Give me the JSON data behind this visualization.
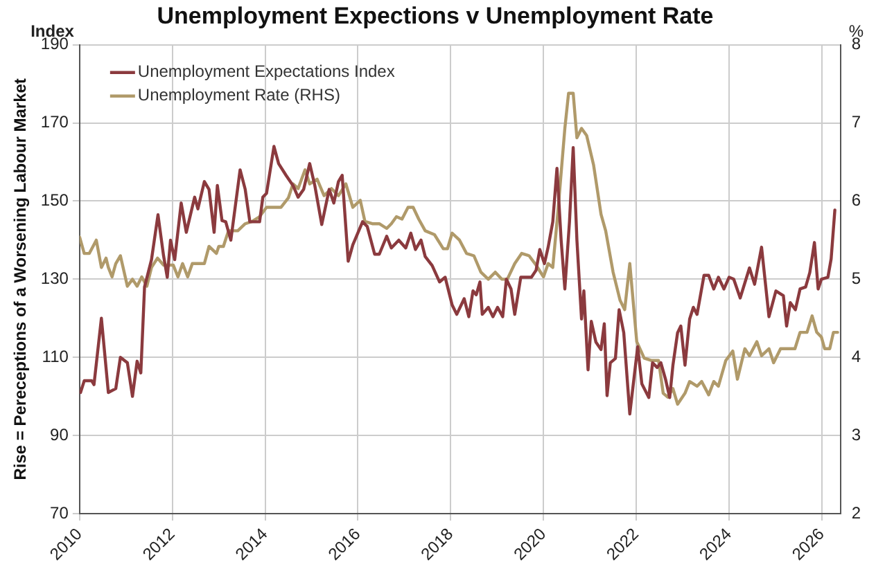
{
  "chart_data": {
    "type": "line",
    "title": "Unemployment Expections v Unemployment Rate",
    "ylabel": "Rise = Pereceptions of a Worsening Labour Market",
    "y2label": "%",
    "annotations": [
      "Index"
    ],
    "xlim": [
      2010,
      2026.4
    ],
    "xticks": [
      2010,
      2012,
      2014,
      2016,
      2018,
      2020,
      2022,
      2024,
      2026
    ],
    "ylim": [
      70,
      190
    ],
    "yticks": [
      70,
      90,
      110,
      130,
      150,
      170,
      190
    ],
    "y2lim": [
      2,
      8
    ],
    "y2ticks": [
      2,
      3,
      4,
      5,
      6,
      7,
      8
    ],
    "grid": true,
    "legend": "top left",
    "marker": "none",
    "line_style": "solid",
    "series": [
      {
        "name": "Unemployment Expectations Index",
        "color": "#8b3a3e",
        "x": [
          2010.02,
          2010.1,
          2010.26,
          2010.31,
          2010.47,
          2010.62,
          2010.78,
          2010.88,
          2011.03,
          2011.14,
          2011.24,
          2011.32,
          2011.4,
          2011.55,
          2011.69,
          2011.81,
          2011.89,
          2011.96,
          2012.05,
          2012.19,
          2012.3,
          2012.48,
          2012.55,
          2012.69,
          2012.79,
          2012.9,
          2012.97,
          2013.07,
          2013.15,
          2013.26,
          2013.46,
          2013.57,
          2013.67,
          2013.88,
          2013.95,
          2014.03,
          2014.19,
          2014.29,
          2014.45,
          2014.6,
          2014.71,
          2014.83,
          2014.96,
          2015.07,
          2015.22,
          2015.38,
          2015.48,
          2015.58,
          2015.66,
          2015.79,
          2015.89,
          2016.1,
          2016.2,
          2016.36,
          2016.46,
          2016.62,
          2016.72,
          2016.88,
          2017.03,
          2017.14,
          2017.24,
          2017.36,
          2017.45,
          2017.6,
          2017.76,
          2017.88,
          2018.03,
          2018.13,
          2018.29,
          2018.39,
          2018.48,
          2018.55,
          2018.63,
          2018.68,
          2018.81,
          2018.91,
          2019.01,
          2019.12,
          2019.2,
          2019.3,
          2019.38,
          2019.51,
          2019.74,
          2019.84,
          2019.92,
          2020.02,
          2020.1,
          2020.2,
          2020.29,
          2020.38,
          2020.46,
          2020.56,
          2020.64,
          2020.72,
          2020.82,
          2020.87,
          2020.96,
          2021.03,
          2021.13,
          2021.24,
          2021.31,
          2021.37,
          2021.44,
          2021.55,
          2021.63,
          2021.73,
          2021.86,
          2022.03,
          2022.12,
          2022.27,
          2022.35,
          2022.45,
          2022.53,
          2022.63,
          2022.72,
          2022.79,
          2022.89,
          2022.96,
          2023.05,
          2023.15,
          2023.23,
          2023.31,
          2023.46,
          2023.56,
          2023.67,
          2023.77,
          2023.89,
          2024.0,
          2024.1,
          2024.24,
          2024.44,
          2024.55,
          2024.7,
          2024.86,
          2025.01,
          2025.17,
          2025.24,
          2025.32,
          2025.43,
          2025.53,
          2025.65,
          2025.74,
          2025.84,
          2025.92,
          2025.99,
          2026.13,
          2026.2,
          2026.28
        ],
        "values": [
          101,
          104,
          104,
          103,
          120,
          101,
          102,
          110,
          108.6,
          100,
          109,
          106,
          128,
          135,
          146.5,
          136,
          130.5,
          140,
          135,
          149.5,
          142,
          151,
          148,
          155,
          153,
          142,
          154,
          145,
          144.7,
          140,
          158,
          153,
          144.7,
          144.7,
          151,
          152,
          164,
          159.6,
          156.6,
          154,
          151,
          153,
          159.6,
          154,
          144,
          153,
          149.5,
          155,
          156.6,
          134.6,
          138.8,
          144.7,
          143.5,
          136.4,
          136.4,
          141,
          138,
          140,
          138,
          141.8,
          137.6,
          140,
          135.8,
          133.5,
          129.3,
          130.5,
          123.4,
          121,
          125,
          120.4,
          127,
          126,
          129.3,
          121,
          122.8,
          120.4,
          122.8,
          120.4,
          130,
          127.5,
          121,
          130.5,
          130.5,
          132.3,
          137.6,
          134,
          138.2,
          144.7,
          158.4,
          140,
          127.5,
          144.7,
          163.7,
          140,
          119.8,
          127,
          106.8,
          119.2,
          113.9,
          112,
          118.6,
          100.2,
          108.6,
          109.7,
          122.2,
          116.3,
          95.5,
          112.7,
          103.2,
          99.7,
          108.6,
          107.4,
          108.6,
          104.4,
          99.7,
          108,
          116.3,
          118,
          108,
          119.8,
          122.8,
          121,
          131,
          131,
          127.5,
          130.5,
          127.5,
          130.5,
          130,
          125.2,
          132.9,
          128.7,
          138.2,
          120.4,
          127,
          125.8,
          118,
          124,
          122.2,
          127.5,
          128,
          131.7,
          139.4,
          127.5,
          130,
          130.5,
          135.2,
          147.7
        ]
      },
      {
        "name": "Unemployment Rate (RHS)",
        "color": "#b09a6a",
        "axis": "y2",
        "x": [
          2010.0,
          2010.1,
          2010.21,
          2010.36,
          2010.47,
          2010.57,
          2010.62,
          2010.7,
          2010.78,
          2010.88,
          2011.03,
          2011.14,
          2011.24,
          2011.34,
          2011.45,
          2011.55,
          2011.68,
          2011.81,
          2012.02,
          2012.12,
          2012.22,
          2012.33,
          2012.43,
          2012.69,
          2012.79,
          2012.95,
          2013.0,
          2013.1,
          2013.21,
          2013.41,
          2013.57,
          2013.72,
          2013.88,
          2014.03,
          2014.34,
          2014.5,
          2014.6,
          2014.71,
          2014.86,
          2014.96,
          2015.12,
          2015.27,
          2015.43,
          2015.58,
          2015.74,
          2015.89,
          2016.05,
          2016.15,
          2016.31,
          2016.46,
          2016.62,
          2016.72,
          2016.83,
          2016.95,
          2017.08,
          2017.19,
          2017.31,
          2017.45,
          2017.65,
          2017.84,
          2017.93,
          2018.03,
          2018.19,
          2018.34,
          2018.5,
          2018.65,
          2018.81,
          2018.96,
          2019.1,
          2019.22,
          2019.38,
          2019.53,
          2019.69,
          2019.84,
          2020.0,
          2020.1,
          2020.2,
          2020.31,
          2020.46,
          2020.54,
          2020.64,
          2020.72,
          2020.82,
          2020.93,
          2021.08,
          2021.24,
          2021.34,
          2021.5,
          2021.65,
          2021.75,
          2021.86,
          2022.01,
          2022.17,
          2022.32,
          2022.48,
          2022.58,
          2022.68,
          2022.79,
          2022.89,
          2023.05,
          2023.15,
          2023.31,
          2023.41,
          2023.56,
          2023.67,
          2023.77,
          2023.93,
          2024.08,
          2024.18,
          2024.34,
          2024.44,
          2024.6,
          2024.7,
          2024.86,
          2024.96,
          2025.11,
          2025.42,
          2025.53,
          2025.68,
          2025.79,
          2025.89,
          2025.99,
          2026.06,
          2026.17,
          2026.25,
          2026.34
        ],
        "values": [
          5.54,
          5.33,
          5.33,
          5.5,
          5.15,
          5.27,
          5.15,
          5.03,
          5.2,
          5.3,
          4.91,
          5.0,
          4.91,
          5.03,
          4.91,
          5.15,
          5.27,
          5.18,
          5.18,
          5.03,
          5.2,
          5.03,
          5.2,
          5.2,
          5.42,
          5.33,
          5.42,
          5.42,
          5.62,
          5.62,
          5.71,
          5.74,
          5.8,
          5.92,
          5.92,
          6.04,
          6.22,
          6.16,
          6.4,
          6.22,
          6.28,
          6.07,
          6.16,
          6.07,
          6.22,
          5.92,
          6.01,
          5.74,
          5.71,
          5.71,
          5.65,
          5.71,
          5.8,
          5.77,
          5.92,
          5.92,
          5.77,
          5.62,
          5.57,
          5.39,
          5.39,
          5.59,
          5.5,
          5.33,
          5.3,
          5.09,
          5.0,
          5.09,
          5.0,
          5.0,
          5.2,
          5.33,
          5.3,
          5.18,
          5.03,
          5.2,
          5.15,
          5.86,
          6.93,
          7.38,
          7.38,
          6.81,
          6.93,
          6.84,
          6.46,
          5.83,
          5.62,
          5.09,
          4.73,
          4.61,
          5.2,
          4.2,
          3.99,
          3.96,
          3.96,
          3.54,
          3.49,
          3.6,
          3.4,
          3.54,
          3.69,
          3.63,
          3.69,
          3.52,
          3.69,
          3.63,
          3.96,
          4.08,
          3.72,
          4.11,
          4.02,
          4.2,
          4.02,
          4.11,
          3.93,
          4.11,
          4.11,
          4.32,
          4.32,
          4.53,
          4.32,
          4.26,
          4.11,
          4.11,
          4.32,
          4.32
        ]
      }
    ]
  }
}
